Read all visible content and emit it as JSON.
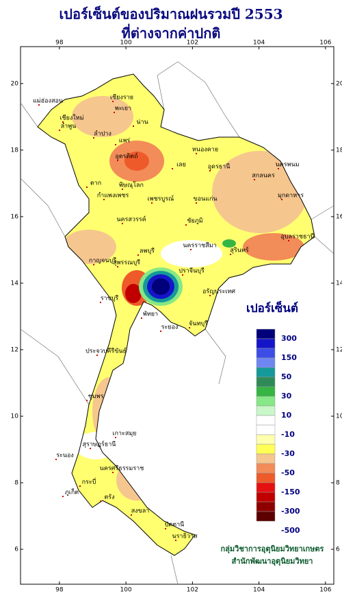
{
  "title": {
    "line1": "เปอร์เซ็นต์ของปริมาณฝนรวมปี 2553",
    "line2": "ที่ต่างจากค่าปกติ"
  },
  "map": {
    "lon_range": [
      96.83,
      106.25
    ],
    "lat_range": [
      4.95,
      21.11
    ],
    "lon_ticks": [
      98,
      100,
      102,
      104,
      106
    ],
    "lat_ticks": [
      6,
      8,
      10,
      12,
      14,
      16,
      18,
      20
    ]
  },
  "legend": {
    "title": "เปอร์เซ็นต์",
    "colors": [
      "#00007a",
      "#1515c8",
      "#3c4ee6",
      "#6f86f2",
      "#15999a",
      "#2e8b57",
      "#35b544",
      "#86e886",
      "#c9f7c9",
      "#ffffff",
      "#ffffff",
      "#ffffb0",
      "#ffff55",
      "#f5c68e",
      "#f28c58",
      "#ee5a2a",
      "#e51010",
      "#c00000",
      "#8e0000",
      "#5c0000"
    ],
    "labels": [
      300,
      150,
      50,
      30,
      10,
      -10,
      -30,
      -50,
      -150,
      -300,
      -500
    ]
  },
  "places": [
    "แม่ฮ่องสอน",
    "เชียงราย",
    "พะเยา",
    "เชียงใหม่",
    "ลำพูน",
    "ลำปาง",
    "น่าน",
    "แพร่",
    "อุตรดิตถ์",
    "ตาก",
    "พิษณุโลก",
    "กำแพงเพชร",
    "เพชรบูรณ์",
    "เลย",
    "หนองคาย",
    "อุดรธานี",
    "สกลนคร",
    "นครพนม",
    "มุกดาหาร",
    "ขอนแก่น",
    "นครสวรรค์",
    "ชัยภูมิ",
    "ลพบุรี",
    "นครราชสีมา",
    "สุรินทร์",
    "อุบลราชธานี",
    "กาญจนบุรี",
    "สุพรรณบุรี",
    "ปราจีนบุรี",
    "อรัญประเทศ",
    "ราชบุรี",
    "พัทยา",
    "ระยอง",
    "จันทบุรี",
    "ประจวบคีรีขันธ์",
    "ชุมพร",
    "เกาะสมุย",
    "สุราษฎร์ธานี",
    "ระนอง",
    "นครศรีธรรมราช",
    "กระบี่",
    "ภูเก็ต",
    "ตรัง",
    "สงขลา",
    "ปัตตานี",
    "นราธิวาส"
  ],
  "credits": [
    "กลุ่มวิชาการอุตุนิยมวิทยาเกษตร",
    "สำนักพัฒนาอุตุนิยมวิทยา"
  ]
}
